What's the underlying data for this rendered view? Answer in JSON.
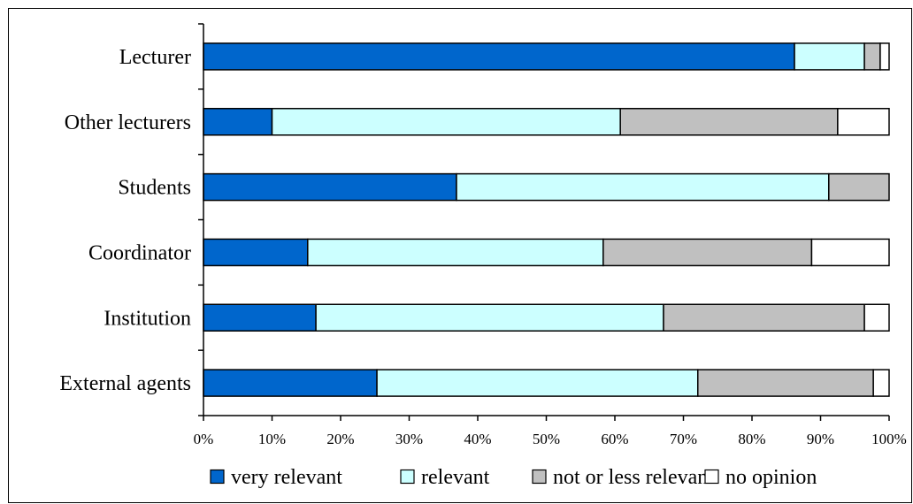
{
  "chart_data": {
    "type": "bar",
    "orientation": "horizontal",
    "stacked": true,
    "normalized_percent": true,
    "categories": [
      "Lecturer",
      "Other lecturers",
      "Students",
      "Coordinator",
      "Institution",
      "External agents"
    ],
    "series": [
      {
        "name": "very relevant",
        "color": "#0066cc",
        "values": [
          86.2,
          10.0,
          36.9,
          15.2,
          16.4,
          25.3
        ]
      },
      {
        "name": "relevant",
        "color": "#ccffff",
        "values": [
          10.2,
          50.8,
          54.3,
          43.1,
          50.7,
          46.8
        ]
      },
      {
        "name": "not or less relevant",
        "color": "#c0c0c0",
        "values": [
          2.3,
          31.7,
          8.8,
          30.4,
          29.3,
          25.6
        ]
      },
      {
        "name": "no opinion",
        "color": "#ffffff",
        "values": [
          1.3,
          7.5,
          0.0,
          11.3,
          3.6,
          2.3
        ]
      }
    ],
    "xlim": [
      0,
      100
    ],
    "xticks": [
      "0%",
      "10%",
      "20%",
      "30%",
      "40%",
      "50%",
      "60%",
      "70%",
      "80%",
      "90%",
      "100%"
    ],
    "grid": false,
    "legend_position": "bottom",
    "title": "",
    "xlabel": "",
    "ylabel": ""
  }
}
